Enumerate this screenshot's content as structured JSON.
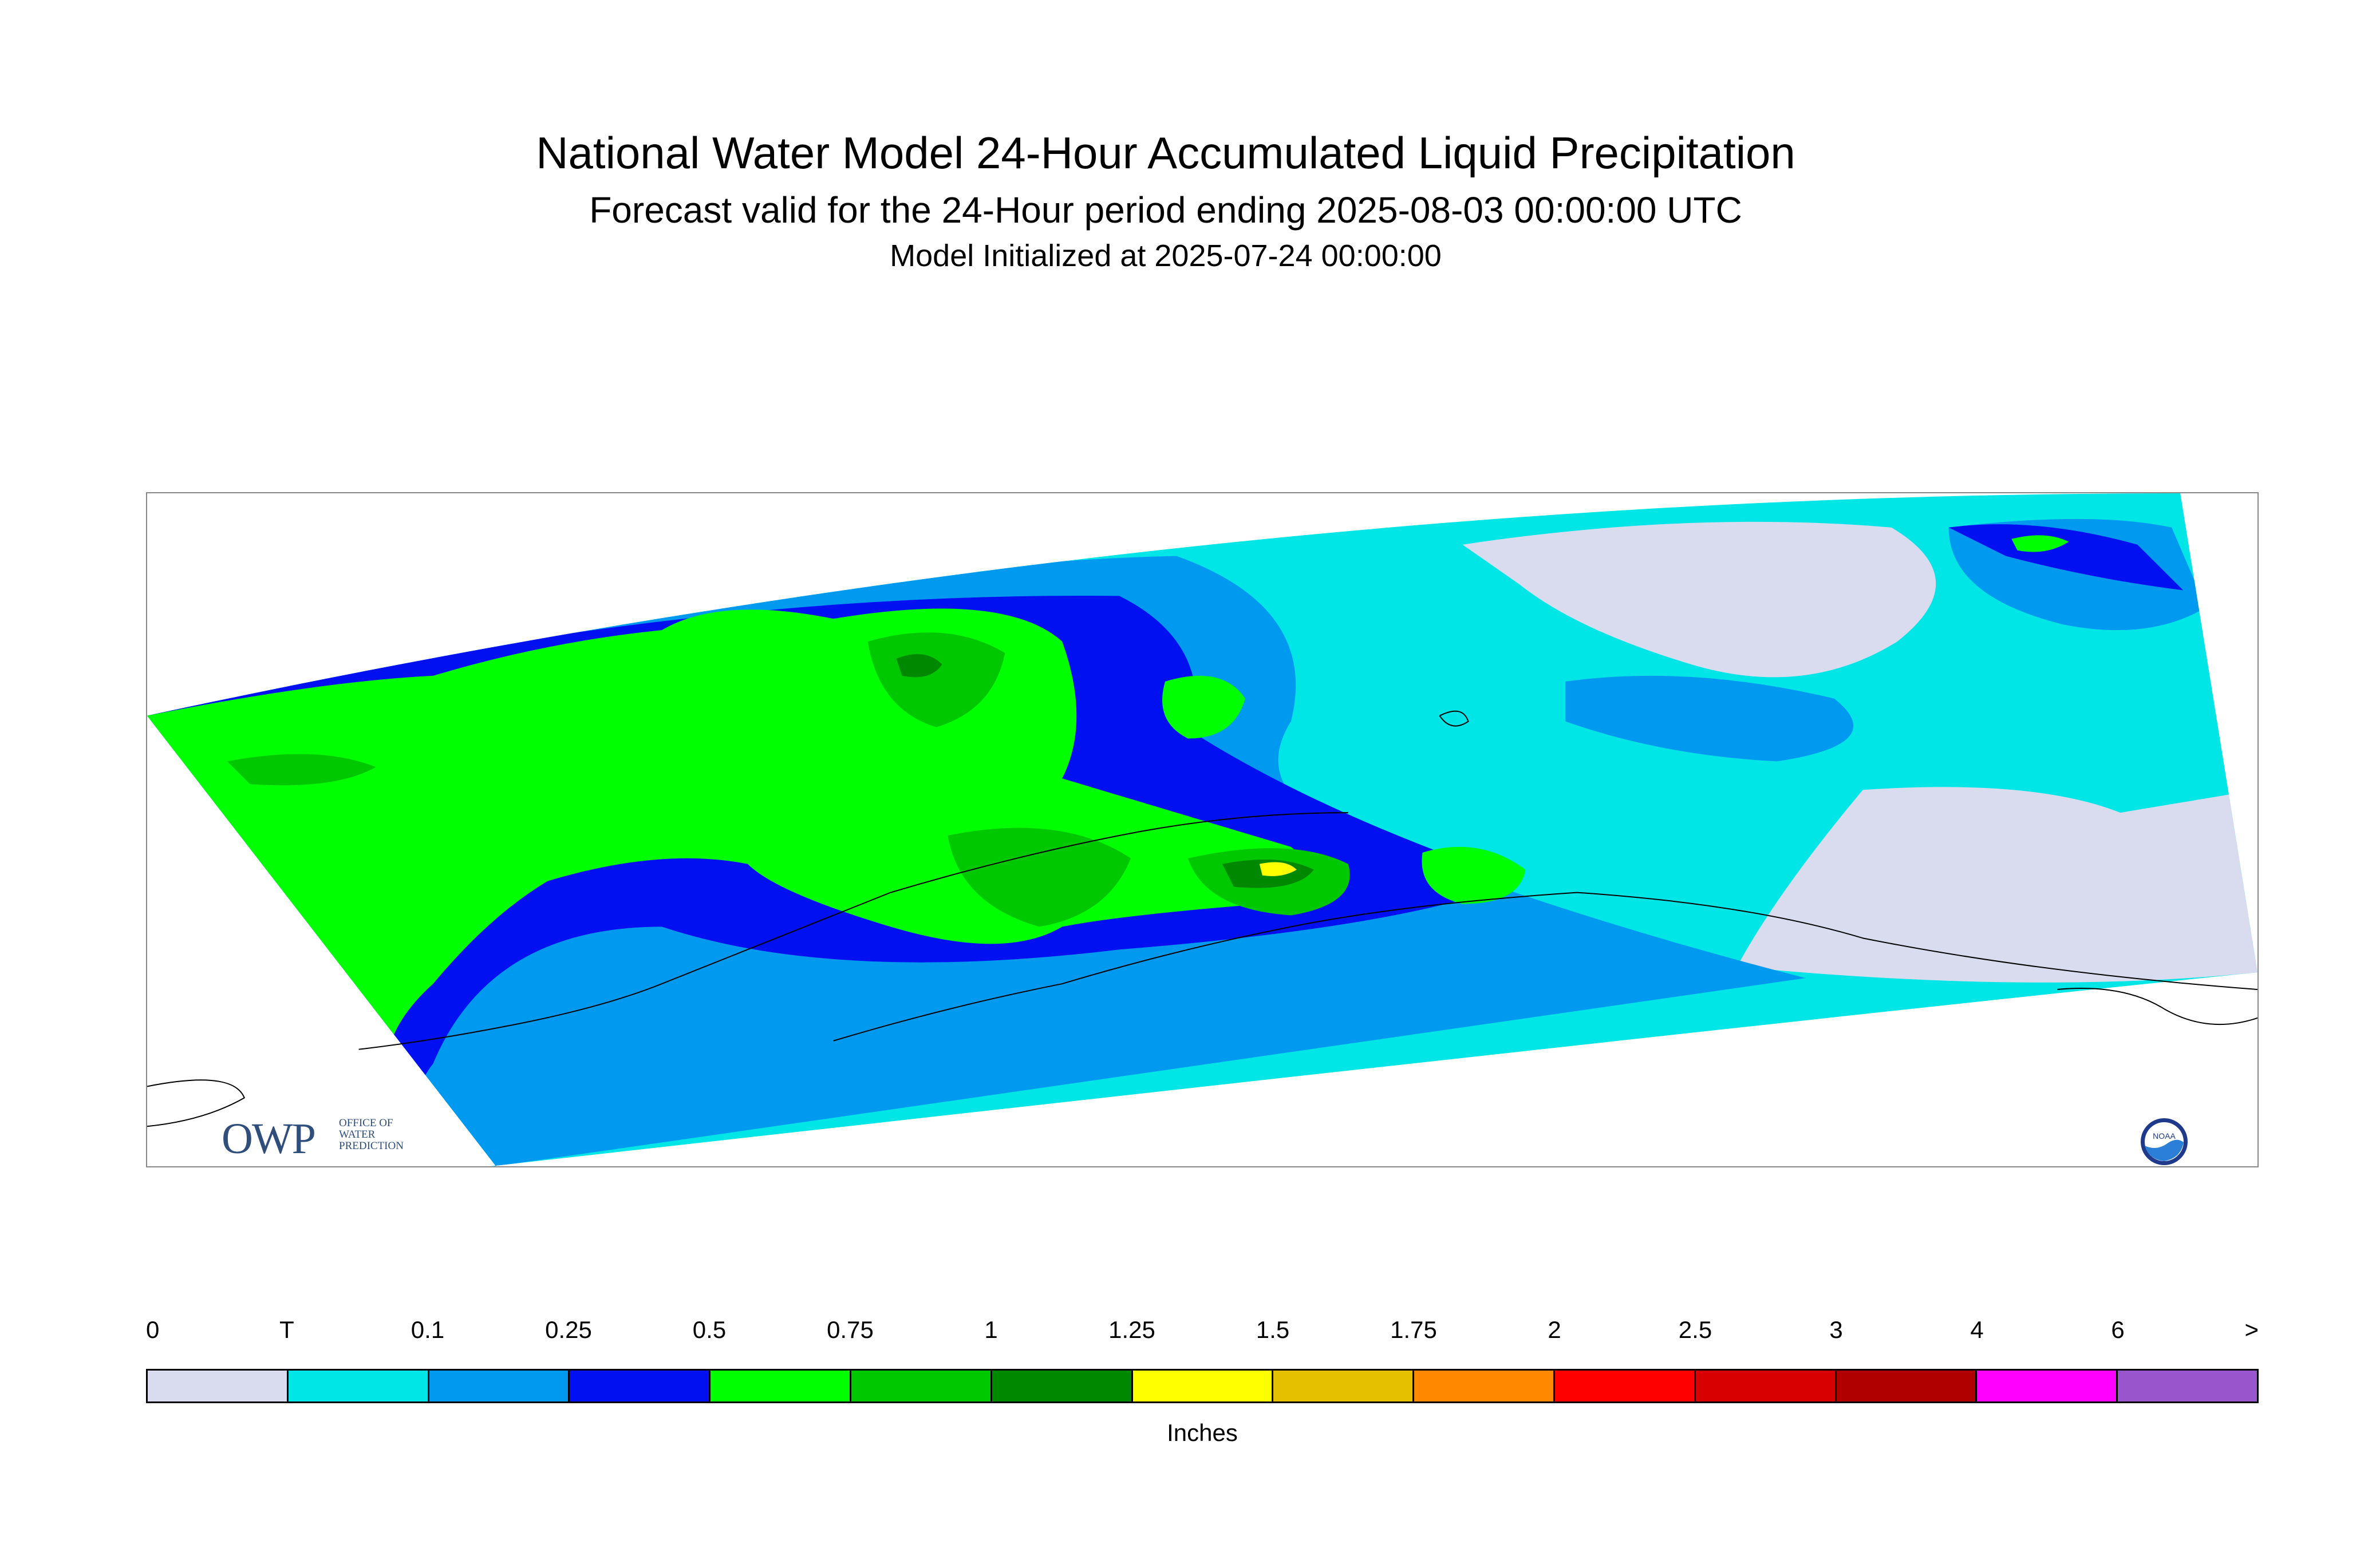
{
  "title": "National Water Model 24-Hour Accumulated Liquid Precipitation",
  "subtitle": "Forecast valid for the 24-Hour period ending 2025-08-03 00:00:00 UTC",
  "init_line": "Model Initialized at 2025-07-24 00:00:00",
  "logos": {
    "owp_mark": "OWP",
    "owp_sub": [
      "OFFICE OF",
      "WATER",
      "PREDICTION"
    ],
    "noaa_text": "NOAA"
  },
  "legend": {
    "labels": [
      "0",
      "T",
      "0.1",
      "0.25",
      "0.5",
      "0.75",
      "1",
      "1.25",
      "1.5",
      "1.75",
      "2",
      "2.5",
      "3",
      "4",
      "6",
      ">"
    ],
    "colors": [
      "#d9dcef",
      "#00e5e5",
      "#0099f0",
      "#0010f0",
      "#00ff00",
      "#00c800",
      "#008800",
      "#ffff00",
      "#e5c000",
      "#ff8800",
      "#ff0000",
      "#d80000",
      "#b00000",
      "#ff00ff",
      "#9955cc"
    ],
    "units": "Inches"
  },
  "map": {
    "region": "Alaska",
    "colors": {
      "zero": "#d9dcef",
      "trace": "#00e5e5",
      "p10": "#0099f0",
      "p25": "#0010f0",
      "p50": "#00ff00",
      "p75": "#00c800",
      "p100": "#008800",
      "p125": "#ffff00",
      "coast": "#000000"
    }
  }
}
